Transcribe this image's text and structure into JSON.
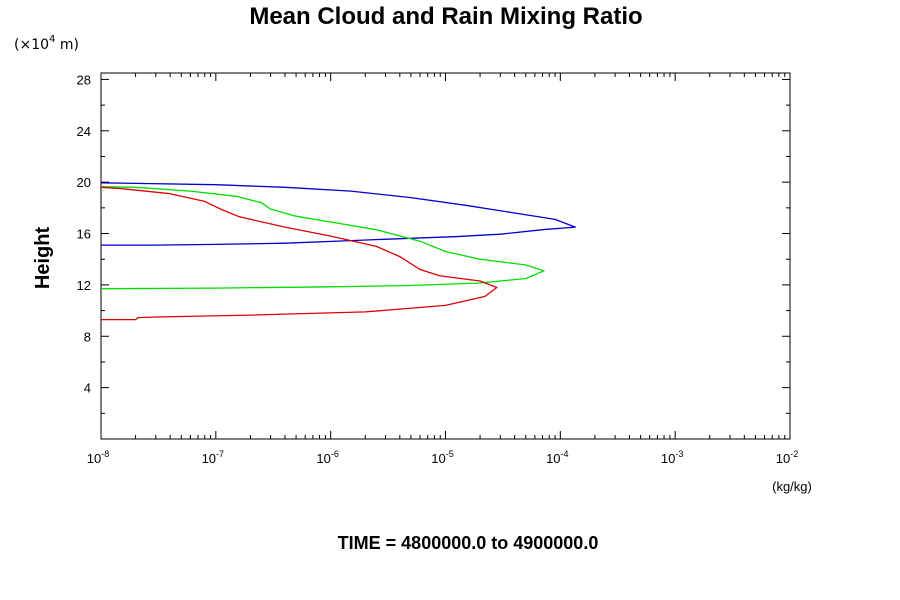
{
  "chart_data": {
    "type": "line",
    "title": "Mean Cloud and Rain Mixing Ratio",
    "y_unit": "(×10",
    "y_unit_exp": "4",
    "y_unit_tail": " m)",
    "ylabel": "Height",
    "xlabel": "(kg/kg)",
    "footer": "TIME = 4800000.0 to 4900000.0",
    "x_scale": "log",
    "xlim": [
      1e-08,
      0.01
    ],
    "ylim": [
      0,
      28.5
    ],
    "x_ticks": [
      {
        "base": "10",
        "exp": "-8",
        "value": 1e-08
      },
      {
        "base": "10",
        "exp": "-7",
        "value": 1e-07
      },
      {
        "base": "10",
        "exp": "-6",
        "value": 1e-06
      },
      {
        "base": "10",
        "exp": "-5",
        "value": 1e-05
      },
      {
        "base": "10",
        "exp": "-4",
        "value": 0.0001
      },
      {
        "base": "10",
        "exp": "-3",
        "value": 0.001
      },
      {
        "base": "10",
        "exp": "-2",
        "value": 0.01
      }
    ],
    "y_ticks": [
      "4",
      "8",
      "12",
      "16",
      "20",
      "24",
      "28"
    ],
    "grid": false,
    "series": [
      {
        "color": "#0000cc",
        "points": [
          [
            1e-08,
            15.1
          ],
          [
            3e-08,
            15.1
          ],
          [
            1e-07,
            15.15
          ],
          [
            4e-07,
            15.25
          ],
          [
            1.5e-06,
            15.45
          ],
          [
            4e-06,
            15.6
          ],
          [
            1.2e-05,
            15.75
          ],
          [
            3e-05,
            15.95
          ],
          [
            7e-05,
            16.3
          ],
          [
            0.000135,
            16.5
          ],
          [
            9e-05,
            17.1
          ],
          [
            4e-05,
            17.6
          ],
          [
            1.5e-05,
            18.2
          ],
          [
            5e-06,
            18.8
          ],
          [
            1.5e-06,
            19.3
          ],
          [
            4e-07,
            19.6
          ],
          [
            1e-07,
            19.8
          ],
          [
            2e-08,
            19.9
          ],
          [
            1e-08,
            19.95
          ]
        ]
      },
      {
        "color": "#00dd00",
        "points": [
          [
            1e-08,
            11.7
          ],
          [
            1e-07,
            11.75
          ],
          [
            1e-06,
            11.85
          ],
          [
            5e-06,
            11.95
          ],
          [
            2e-05,
            12.15
          ],
          [
            5e-05,
            12.5
          ],
          [
            7.2e-05,
            13.1
          ],
          [
            5e-05,
            13.55
          ],
          [
            2e-05,
            14.0
          ],
          [
            1e-05,
            14.6
          ],
          [
            6e-06,
            15.4
          ],
          [
            2.5e-06,
            16.3
          ],
          [
            1e-06,
            16.9
          ],
          [
            5e-07,
            17.35
          ],
          [
            3e-07,
            17.9
          ],
          [
            2.5e-07,
            18.4
          ],
          [
            1.5e-07,
            18.9
          ],
          [
            6e-08,
            19.3
          ],
          [
            2e-08,
            19.6
          ],
          [
            1e-08,
            19.65
          ]
        ]
      },
      {
        "color": "#dd0000",
        "points": [
          [
            1e-08,
            9.3
          ],
          [
            2e-08,
            9.3
          ],
          [
            2.1e-08,
            9.45
          ],
          [
            3e-08,
            9.5
          ],
          [
            2e-07,
            9.65
          ],
          [
            2e-06,
            9.9
          ],
          [
            1e-05,
            10.4
          ],
          [
            2.2e-05,
            11.1
          ],
          [
            2.8e-05,
            11.8
          ],
          [
            2e-05,
            12.3
          ],
          [
            9e-06,
            12.7
          ],
          [
            6e-06,
            13.2
          ],
          [
            4e-06,
            14.2
          ],
          [
            2.5e-06,
            15.0
          ],
          [
            1e-06,
            15.8
          ],
          [
            4e-07,
            16.5
          ],
          [
            1.6e-07,
            17.3
          ],
          [
            1.1e-07,
            17.9
          ],
          [
            8e-08,
            18.5
          ],
          [
            4e-08,
            19.1
          ],
          [
            1.5e-08,
            19.5
          ],
          [
            1e-08,
            19.6
          ]
        ]
      }
    ]
  }
}
